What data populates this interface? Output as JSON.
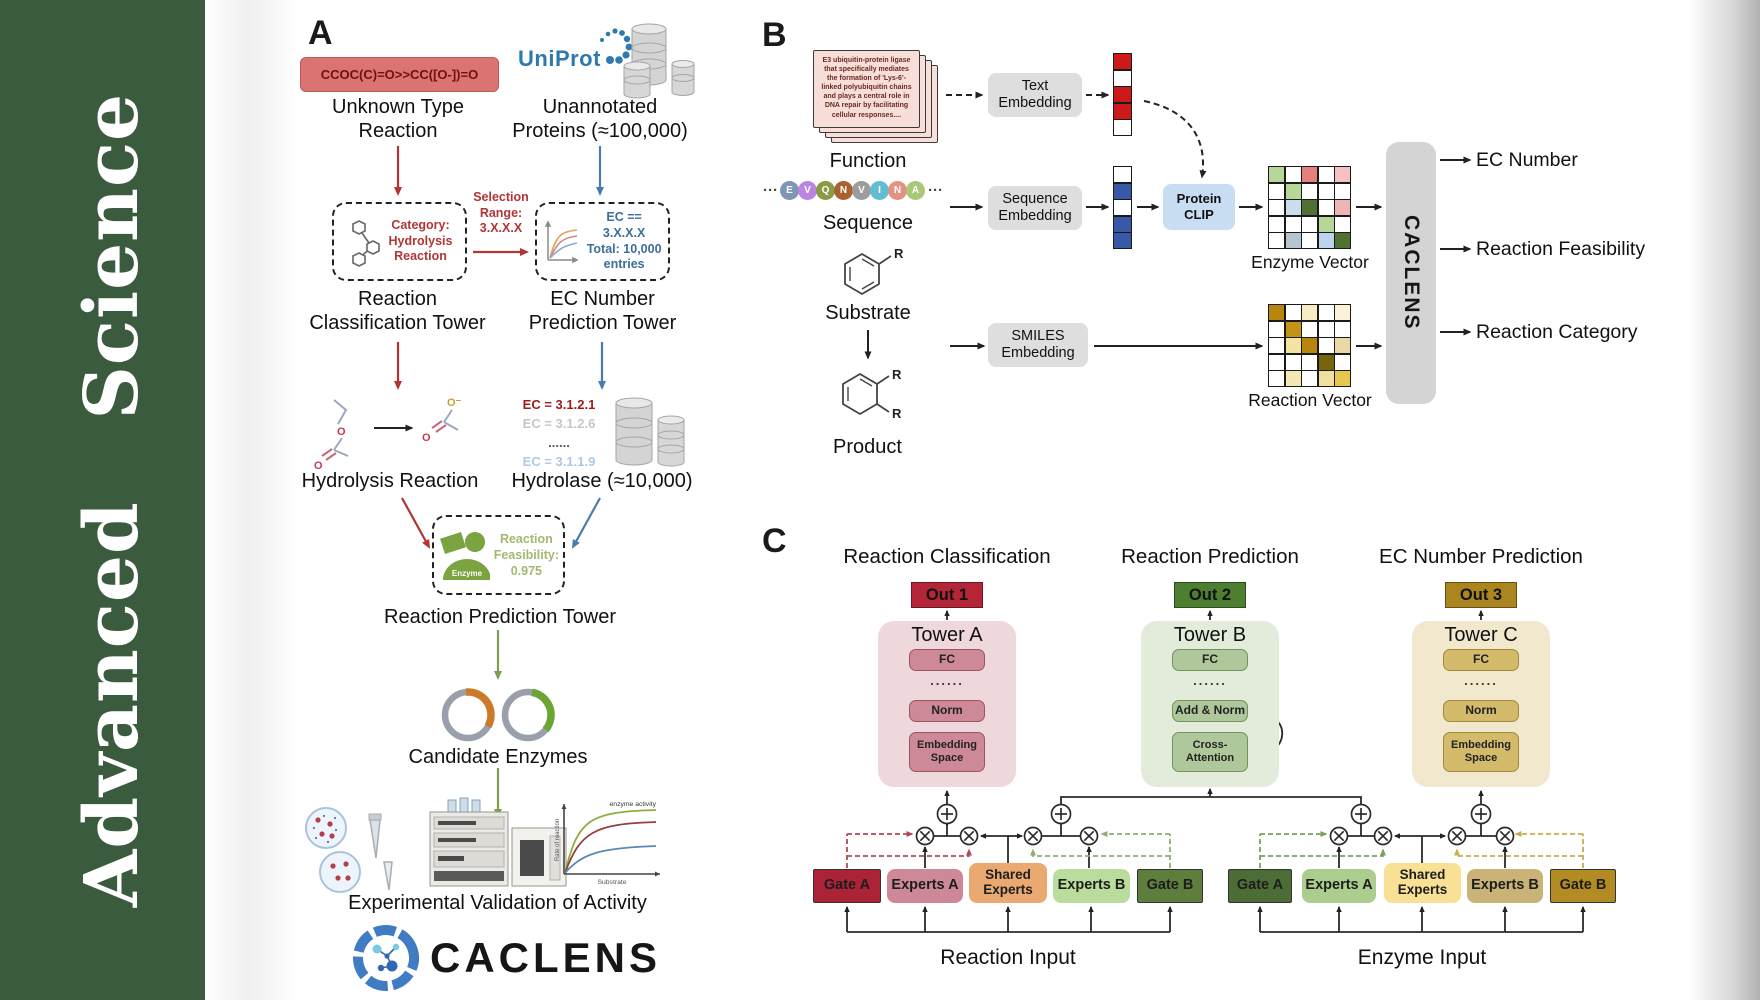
{
  "banner": {
    "title": "Advanced Science",
    "bg": "#3a5b3d"
  },
  "panel_a": {
    "label": "A",
    "smiles": "CCOC(C)=O>>CC([O-])=O",
    "unknown_type": "Unknown Type\nReaction",
    "uniprot": "UniProt",
    "unannotated": "Unannotated\nProteins (≈100,000)",
    "selection_range": "Selection\nRange:\n3.X.X.X",
    "category_box": "Category:\nHydrolysis\nReaction",
    "ec_filter_box": "EC == 3.X.X.X\nTotal: 10,000\nentries",
    "classification_tower": "Reaction\nClassification Tower",
    "ec_tower": "EC Number\nPrediction Tower",
    "hydrolysis_reaction": "Hydrolysis Reaction",
    "ec_list": [
      {
        "text": "EC = 3.1.2.1",
        "color": "#9b1c1c",
        "bold": true
      },
      {
        "text": "EC = 3.1.2.6",
        "color": "#c6c6c6",
        "bold": false
      },
      {
        "text": "......",
        "color": "#555555",
        "bold": true
      },
      {
        "text": "EC = 3.1.1.9",
        "color": "#abc9e4",
        "bold": false
      }
    ],
    "hydrolase": "Hydrolase (≈10,000)",
    "enzyme_badge": "Enzyme",
    "feasibility": "Reaction\nFeasibility:\n0.975",
    "prediction_tower": "Reaction Prediction Tower",
    "candidate_enzymes": "Candidate Enzymes",
    "validation": "Experimental Validation of Activity",
    "logo": "CACLENS",
    "minichart": {
      "title": "enzyme activity",
      "ylabel": "Rate of reaction",
      "xlabel": "Substrate"
    }
  },
  "panel_b": {
    "label": "B",
    "function_text": "E3 ubiquitin-protein ligase that specifically mediates the formation of 'Lys-6'-linked polyubiquitin chains and plays a central role in DNA repair by facilitating cellular responses....",
    "function_label": "Function",
    "ellipsis": "···",
    "sequence_letters": [
      {
        "ch": "E",
        "color": "#7e95b8"
      },
      {
        "ch": "V",
        "color": "#b985e0"
      },
      {
        "ch": "Q",
        "color": "#8a9a45"
      },
      {
        "ch": "N",
        "color": "#a9622f"
      },
      {
        "ch": "V",
        "color": "#9c9c9c"
      },
      {
        "ch": "I",
        "color": "#62bdd1"
      },
      {
        "ch": "N",
        "color": "#e29384"
      },
      {
        "ch": "A",
        "color": "#abc878"
      }
    ],
    "sequence_label": "Sequence",
    "substrate_label": "Substrate",
    "product_label": "Product",
    "r_group": "R",
    "text_embedding": "Text\nEmbedding",
    "sequence_embedding": "Sequence\nEmbedding",
    "smiles_embedding": "SMILES\nEmbedding",
    "protein_clip": "Protein\nCLIP",
    "text_vector": [
      "#cc1a1a",
      "#ffffff",
      "#cc1a1a",
      "#cc1a1a",
      "#ffffff"
    ],
    "seq_vector": [
      "#ffffff",
      "#3a58a8",
      "#ffffff",
      "#3a58a8",
      "#3a58a8"
    ],
    "enzyme_grid": [
      [
        "#b7d798",
        "#ffffff",
        "#e4807e",
        "#ffffff",
        "#f3c3c3"
      ],
      [
        "#ffffff",
        "#b7d798",
        "#ffffff",
        "#ffffff",
        "#ffffff"
      ],
      [
        "#ffffff",
        "#ccddf0",
        "#4f7132",
        "#ffffff",
        "#f0b4b4"
      ],
      [
        "#ffffff",
        "#ffffff",
        "#ffffff",
        "#b7d798",
        "#ffffff"
      ],
      [
        "#ffffff",
        "#b9c5cd",
        "#ffffff",
        "#bcd4ec",
        "#4f7132"
      ]
    ],
    "reaction_grid": [
      [
        "#b8860f",
        "#ffffff",
        "#f6edc5",
        "#ffffff",
        "#faf3da"
      ],
      [
        "#ffffff",
        "#c39317",
        "#ffffff",
        "#ffffff",
        "#ffffff"
      ],
      [
        "#ffffff",
        "#f3e3a5",
        "#b8860f",
        "#ffffff",
        "#ead9a4"
      ],
      [
        "#ffffff",
        "#ffffff",
        "#ffffff",
        "#77650e",
        "#ffffff"
      ],
      [
        "#ffffff",
        "#f4e7b4",
        "#ffffff",
        "#f0dfa0",
        "#e7c84e"
      ]
    ],
    "enzyme_vector_label": "Enzyme Vector",
    "reaction_vector_label": "Reaction Vector",
    "caclens_bar": "CACLENS",
    "outputs": [
      "EC Number",
      "Reaction Feasibility",
      "Reaction Category"
    ]
  },
  "panel_c": {
    "label": "C",
    "headers": [
      "Reaction Classification",
      "Reaction Prediction",
      "EC Number Prediction"
    ],
    "outs": [
      "Out 1",
      "Out 2",
      "Out 3"
    ],
    "out_colors": [
      "#b42537",
      "#4e7e30",
      "#ab851e"
    ],
    "towers": [
      {
        "title": "Tower A",
        "panel_bg": "#efd8dc",
        "block_bg": "#cd8997",
        "block_border": "#99555f",
        "blocks": [
          "FC",
          "......",
          "Norm",
          "Embedding\nSpace"
        ]
      },
      {
        "title": "Tower B",
        "panel_bg": "#e3ebdb",
        "block_bg": "#afc89b",
        "block_border": "#71925c",
        "blocks": [
          "FC",
          "......",
          "Add & Norm",
          "Cross-\nAttention"
        ]
      },
      {
        "title": "Tower C",
        "panel_bg": "#f1e8cd",
        "block_bg": "#d4bb6b",
        "block_border": "#a08a38",
        "blocks": [
          "FC",
          "......",
          "Norm",
          "Embedding\nSpace"
        ]
      }
    ],
    "moe_groups": [
      {
        "input_label": "Reaction Input",
        "boxes": [
          {
            "label": "Gate A",
            "bg": "#ac2338",
            "type": "gate"
          },
          {
            "label": "Experts A",
            "bg": "#cd8997",
            "type": "experts"
          },
          {
            "label": "Shared\nExperts",
            "bg": "#eba972",
            "type": "experts"
          },
          {
            "label": "Experts B",
            "bg": "#badc9d",
            "type": "experts"
          },
          {
            "label": "Gate B",
            "bg": "#5e7e3e",
            "type": "gate"
          }
        ]
      },
      {
        "input_label": "Enzyme Input",
        "boxes": [
          {
            "label": "Gate A",
            "bg": "#4d6d36",
            "type": "gate"
          },
          {
            "label": "Experts A",
            "bg": "#abce8e",
            "type": "experts"
          },
          {
            "label": "Shared\nExperts",
            "bg": "#f8e094",
            "type": "experts"
          },
          {
            "label": "Experts B",
            "bg": "#cab376",
            "type": "experts"
          },
          {
            "label": "Gate B",
            "bg": "#b28c22",
            "type": "gate"
          }
        ]
      }
    ]
  }
}
